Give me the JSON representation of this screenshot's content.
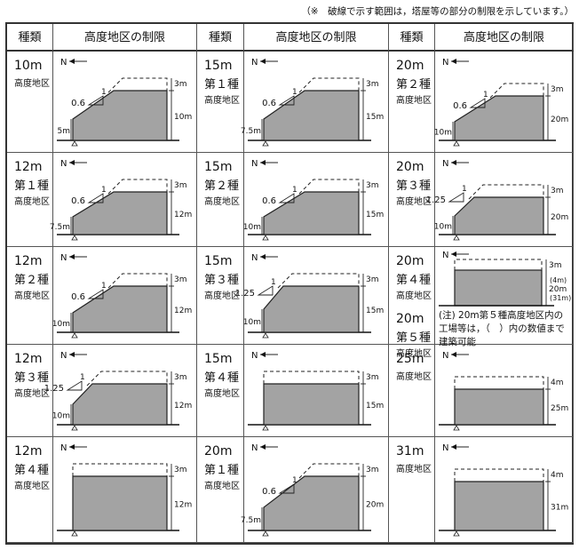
{
  "note": "（※　破線で示す範囲は，塔屋等の部分の制限を示しています。）",
  "headers": {
    "type": "種類",
    "limit": "高度地区の制限"
  },
  "north": "N",
  "footnote": "(注) 20m第５種高度地区内の工場等は，（　）内の数値まで建築可能",
  "columns": [
    [
      {
        "h": "10m",
        "k": "",
        "s": "高度地区",
        "slope": "0.6",
        "run": "1",
        "base": "5m",
        "top": "3m",
        "side": "10m"
      },
      {
        "h": "12m",
        "k": "第１種",
        "s": "高度地区",
        "slope": "0.6",
        "run": "1",
        "base": "7.5m",
        "top": "3m",
        "side": "12m"
      },
      {
        "h": "12m",
        "k": "第２種",
        "s": "高度地区",
        "slope": "0.6",
        "run": "1",
        "base": "10m",
        "top": "3m",
        "side": "12m"
      },
      {
        "h": "12m",
        "k": "第３種",
        "s": "高度地区",
        "slope": "1.25",
        "run": "1",
        "base": "10m",
        "top": "3m",
        "side": "12m"
      },
      {
        "h": "12m",
        "k": "第４種",
        "s": "高度地区",
        "slope": "",
        "run": "",
        "base": "",
        "top": "3m",
        "side": "12m"
      }
    ],
    [
      {
        "h": "15m",
        "k": "第１種",
        "s": "高度地区",
        "slope": "0.6",
        "run": "1",
        "base": "7.5m",
        "top": "3m",
        "side": "15m"
      },
      {
        "h": "15m",
        "k": "第２種",
        "s": "高度地区",
        "slope": "0.6",
        "run": "1",
        "base": "10m",
        "top": "3m",
        "side": "15m"
      },
      {
        "h": "15m",
        "k": "第３種",
        "s": "高度地区",
        "slope": "1.25",
        "run": "1",
        "base": "10m",
        "top": "3m",
        "side": "15m"
      },
      {
        "h": "15m",
        "k": "第４種",
        "s": "高度地区",
        "slope": "",
        "run": "",
        "base": "",
        "top": "3m",
        "side": "15m"
      },
      {
        "h": "20m",
        "k": "第１種",
        "s": "高度地区",
        "slope": "0.6",
        "run": "1",
        "base": "7.5m",
        "top": "3m",
        "side": "20m"
      }
    ],
    [
      {
        "h": "20m",
        "k": "第２種",
        "s": "高度地区",
        "slope": "0.6",
        "run": "1",
        "base": "10m",
        "top": "3m",
        "side": "20m"
      },
      {
        "h": "20m",
        "k": "第３種",
        "s": "高度地区",
        "slope": "1.25",
        "run": "1",
        "base": "10m",
        "top": "3m",
        "side": "20m"
      },
      {
        "h": "20m",
        "k": "第４種",
        "s": "高度地区",
        "h2": "20m",
        "k2": "第５種",
        "s2": "高度地区",
        "top": "3m",
        "side": "20m",
        "side_a": "(4m)",
        "side_b": "(31m)"
      },
      {
        "h": "25m",
        "k": "",
        "s": "高度地区",
        "top": "4m",
        "side": "25m"
      },
      {
        "h": "31m",
        "k": "",
        "s": "高度地区",
        "top": "4m",
        "side": "31m"
      }
    ]
  ]
}
